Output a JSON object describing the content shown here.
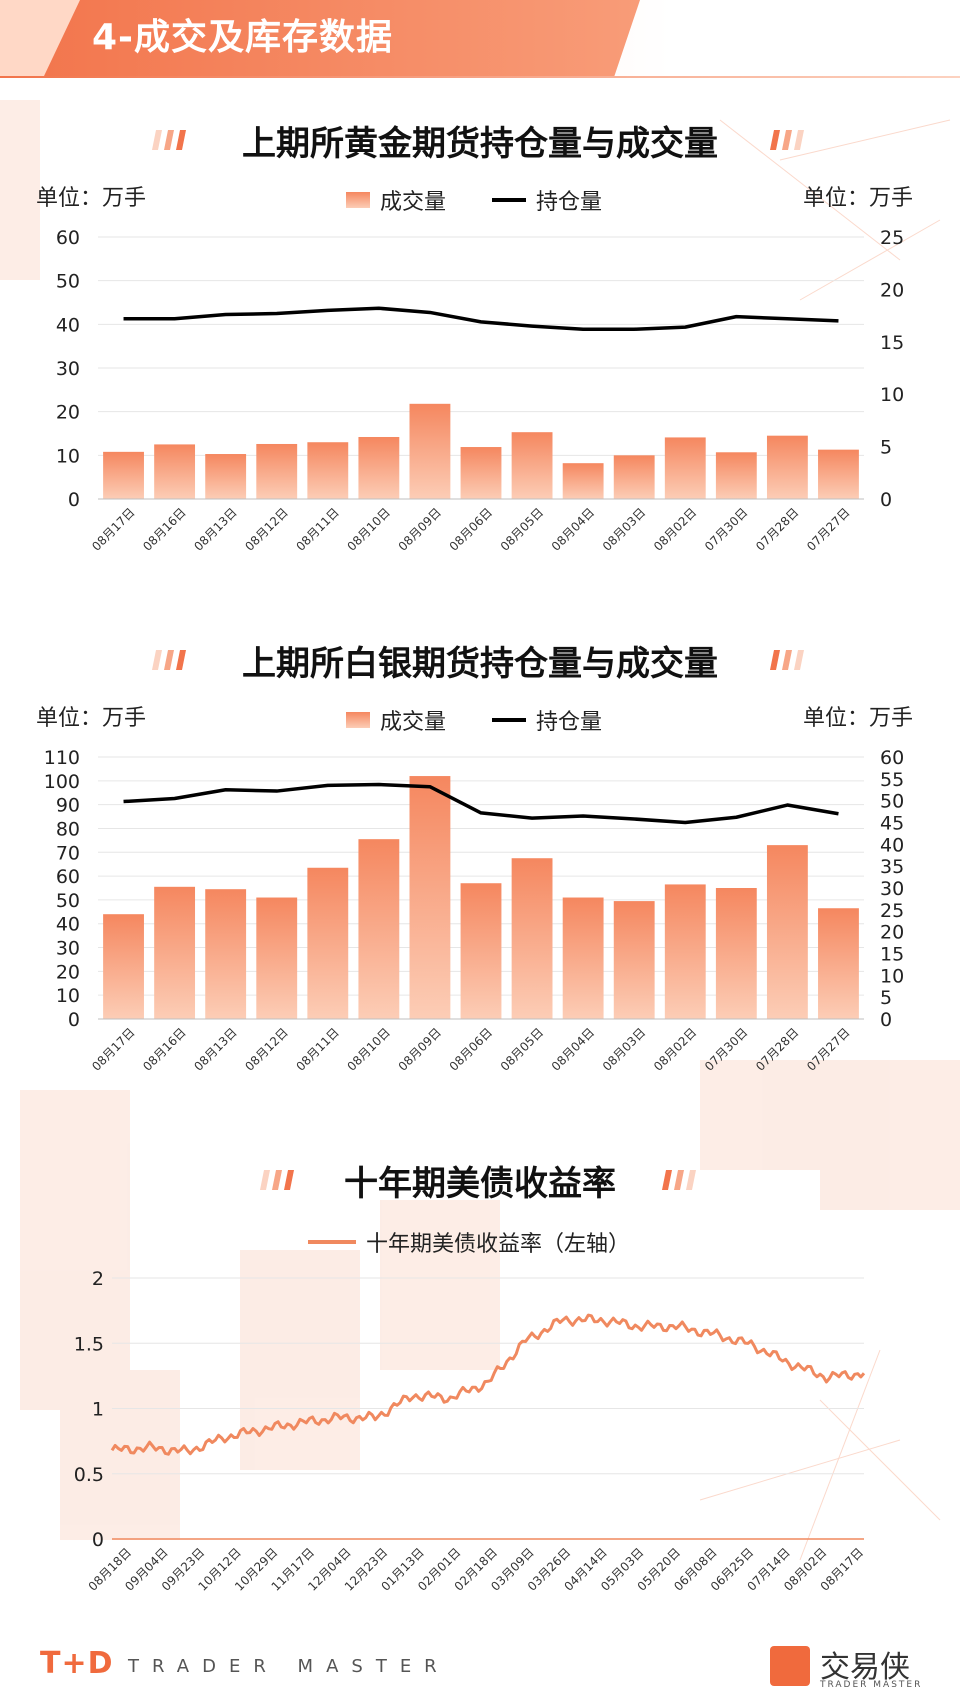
{
  "header": {
    "title": "4-成交及库存数据"
  },
  "colors": {
    "accent": "#f2744b",
    "bar_top": "#f5875f",
    "bar_bottom": "#fccdb6",
    "line": "#000000",
    "yield_line": "#f0895f"
  },
  "gold": {
    "title": "上期所黄金期货持仓量与成交量",
    "unit_left": "单位：万手",
    "unit_right": "单位：万手",
    "legend_bar": "成交量",
    "legend_line": "持仓量"
  },
  "silver": {
    "title": "上期所白银期货持仓量与成交量",
    "unit_left": "单位：万手",
    "unit_right": "单位：万手",
    "legend_bar": "成交量",
    "legend_line": "持仓量"
  },
  "treasury": {
    "title": "十年期美债收益率",
    "legend": "十年期美债收益率（左轴）"
  },
  "chart_data": [
    {
      "type": "bar",
      "title": "上期所黄金期货持仓量与成交量",
      "categories": [
        "08月17日",
        "08月16日",
        "08月13日",
        "08月12日",
        "08月11日",
        "08月10日",
        "08月09日",
        "08月06日",
        "08月05日",
        "08月04日",
        "08月03日",
        "08月02日",
        "07月30日",
        "07月28日",
        "07月27日"
      ],
      "series": [
        {
          "name": "成交量",
          "type": "bar",
          "axis": "left",
          "values": [
            10.8,
            12.5,
            10.3,
            12.6,
            13.0,
            14.2,
            21.8,
            11.9,
            15.3,
            8.2,
            10.0,
            14.1,
            10.7,
            14.5,
            11.3
          ]
        },
        {
          "name": "持仓量",
          "type": "line",
          "axis": "right",
          "values": [
            17.2,
            17.2,
            17.6,
            17.7,
            18.0,
            18.2,
            17.8,
            16.9,
            16.5,
            16.2,
            16.2,
            16.4,
            17.4,
            17.2,
            17.0
          ]
        }
      ],
      "ylim_left": [
        0,
        60
      ],
      "yticks_left": [
        0,
        10,
        20,
        30,
        40,
        50,
        60
      ],
      "ylim_right": [
        0,
        25
      ],
      "yticks_right": [
        0,
        5,
        10,
        15,
        20,
        25
      ],
      "grid": true,
      "legend_position": "top-center"
    },
    {
      "type": "bar",
      "title": "上期所白银期货持仓量与成交量",
      "categories": [
        "08月17日",
        "08月16日",
        "08月13日",
        "08月12日",
        "08月11日",
        "08月10日",
        "08月09日",
        "08月06日",
        "08月05日",
        "08月04日",
        "08月03日",
        "08月02日",
        "07月30日",
        "07月28日",
        "07月27日"
      ],
      "series": [
        {
          "name": "成交量",
          "type": "bar",
          "axis": "left",
          "values": [
            44,
            55.5,
            54.5,
            51,
            63.5,
            75.5,
            102,
            57,
            67.5,
            51,
            49.5,
            56.5,
            55,
            73,
            46.5
          ]
        },
        {
          "name": "持仓量",
          "type": "line",
          "axis": "right",
          "values": [
            49.8,
            50.5,
            52.5,
            52.2,
            53.5,
            53.7,
            53.2,
            47.2,
            46.0,
            46.5,
            45.8,
            45.0,
            46.2,
            49.0,
            47.0
          ]
        }
      ],
      "ylim_left": [
        0,
        110
      ],
      "yticks_left": [
        0,
        10,
        20,
        30,
        40,
        50,
        60,
        70,
        80,
        90,
        100,
        110
      ],
      "ylim_right": [
        0,
        60
      ],
      "yticks_right": [
        0,
        5,
        10,
        15,
        20,
        25,
        30,
        35,
        40,
        45,
        50,
        55,
        60
      ],
      "grid": true,
      "legend_position": "top-center"
    },
    {
      "type": "line",
      "title": "十年期美债收益率",
      "x_ticks": [
        "08月18日",
        "09月04日",
        "09月23日",
        "10月12日",
        "10月29日",
        "11月17日",
        "12月04日",
        "12月23日",
        "01月13日",
        "02月01日",
        "02月18日",
        "03月09日",
        "03月26日",
        "04月14日",
        "05月03日",
        "05月20日",
        "06月08日",
        "06月25日",
        "07月14日",
        "08月02日",
        "08月17日"
      ],
      "series": [
        {
          "name": "十年期美债收益率（左轴）",
          "anchor_values": [
            0.68,
            0.7,
            0.67,
            0.78,
            0.84,
            0.89,
            0.93,
            0.93,
            1.1,
            1.08,
            1.2,
            1.52,
            1.68,
            1.68,
            1.63,
            1.63,
            1.57,
            1.49,
            1.35,
            1.24,
            1.27
          ]
        }
      ],
      "ylim": [
        0,
        2
      ],
      "yticks": [
        0,
        0.5,
        1,
        1.5,
        2
      ],
      "grid": true,
      "legend_position": "top-center"
    }
  ]
}
